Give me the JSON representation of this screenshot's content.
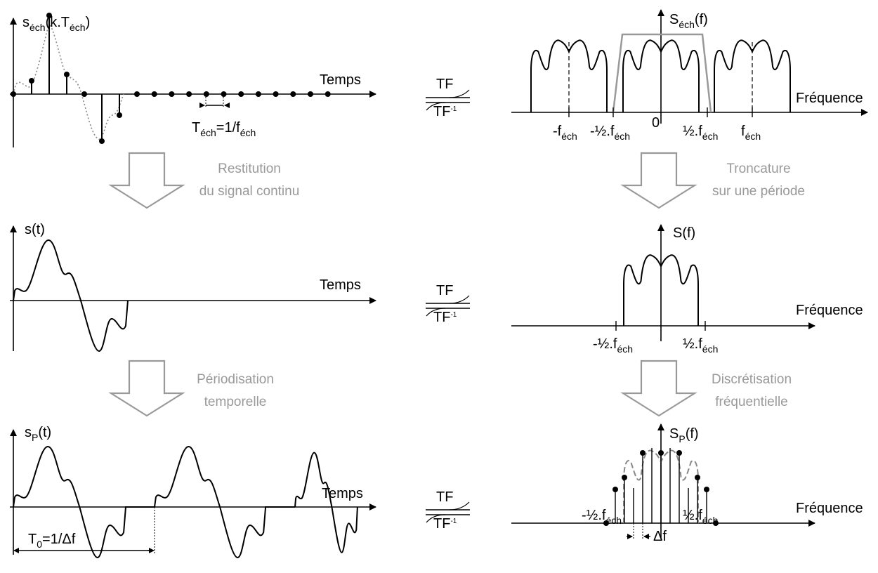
{
  "colors": {
    "ink": "#000000",
    "gray": "#999999",
    "dotted": "#888888"
  },
  "rows": [
    {
      "time": {
        "title_main": "s",
        "title_sub": "éch",
        "title_mid": "(k.T",
        "title_sub2": "éch",
        "title_end": ")",
        "axis_label": "Temps"
      },
      "spacing": {
        "main": "T",
        "sub": "éch",
        "mid": "=1/f",
        "sub2": "éch"
      },
      "tf": {
        "forward": "TF",
        "inverse": "TF",
        "inverse_exp": "-1"
      },
      "freq": {
        "title_main": "S",
        "title_sub": "éch",
        "title_end": "(f)",
        "axis_label": "Fréquence",
        "zero": "0"
      },
      "ticks": [
        {
          "main": "-f",
          "sub": "éch"
        },
        {
          "main": "-½.f",
          "sub": "éch"
        },
        {
          "main": "½.f",
          "sub": "éch"
        },
        {
          "main": "f",
          "sub": "éch"
        }
      ]
    },
    {
      "time": {
        "title_main": "s(t)",
        "axis_label": "Temps"
      },
      "tf": {
        "forward": "TF",
        "inverse": "TF",
        "inverse_exp": "-1"
      },
      "freq": {
        "title_main": "S(f)",
        "axis_label": "Fréquence"
      },
      "ticks": [
        {
          "main": "-½.f",
          "sub": "éch"
        },
        {
          "main": "½.f",
          "sub": "éch"
        }
      ]
    },
    {
      "time": {
        "title_main": "s",
        "title_sub": "P",
        "title_end": "(t)",
        "axis_label": "Temps"
      },
      "period": {
        "main": "T",
        "sub": "0",
        "rest": "=1/Δf"
      },
      "tf": {
        "forward": "TF",
        "inverse": "TF",
        "inverse_exp": "-1"
      },
      "freq": {
        "title_main": "S",
        "title_sub": "P",
        "title_end": "(f)",
        "axis_label": "Fréquence",
        "delta": "Δf"
      },
      "ticks": [
        {
          "main": "-½.f",
          "sub": "éch"
        },
        {
          "main": "½.f",
          "sub": "éch"
        }
      ]
    }
  ],
  "transitions": {
    "left_1": [
      "Restitution",
      "du signal continu"
    ],
    "right_1": [
      "Troncature",
      "sur une période"
    ],
    "left_2": [
      "Périodisation",
      "temporelle"
    ],
    "right_2": [
      "Discrétisation",
      "fréquentielle"
    ]
  }
}
